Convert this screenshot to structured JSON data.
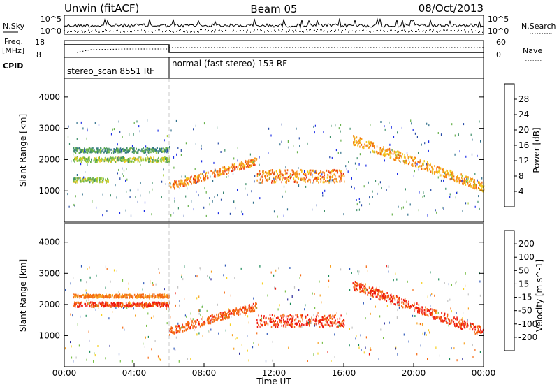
{
  "header": {
    "station": "Unwin (fitACF)",
    "beam": "Beam 05",
    "date": "08/Oct/2013"
  },
  "noise_panel": {
    "left_label": "N.Sky",
    "right_label": "N.Search",
    "left_ticks": [
      "10^5",
      "10^0"
    ],
    "right_ticks": [
      "10^5",
      "10^0"
    ]
  },
  "freq_panel": {
    "left_label_1": "Freq.",
    "left_label_2": "[MHz]",
    "left_ticks": [
      "18",
      "8"
    ],
    "right_label": "Nave",
    "right_ticks": [
      "60",
      "0"
    ]
  },
  "cpid_panel": {
    "label": "CPID",
    "modes": [
      {
        "name": "stereo_scan 8551 RF",
        "start_hour": 0,
        "end_hour": 6
      },
      {
        "name": "normal (fast stereo) 153 RF",
        "start_hour": 6,
        "end_hour": 24
      }
    ]
  },
  "x_axis": {
    "label": "Time UT",
    "ticks": [
      "00:00",
      "04:00",
      "08:00",
      "12:00",
      "16:00",
      "20:00",
      "00:00"
    ]
  },
  "colors": {
    "power": [
      "#1a2ce6",
      "#264aa6",
      "#2e6e8a",
      "#3f8f6a",
      "#66b04a",
      "#a8cf3a",
      "#f2c81c",
      "#f79a1a",
      "#f06a12",
      "#e83010",
      "#e81010"
    ],
    "velocity": [
      "#2a2a9a",
      "#2e58b8",
      "#1b8a58",
      "#7ac048",
      "#c4c4c4",
      "#f7d020",
      "#f7a020",
      "#f56a12",
      "#ee1a10"
    ]
  },
  "chart_data": [
    {
      "type": "heatmap",
      "title": "",
      "ylabel": "Slant Range [km]",
      "y_ticks": [
        "1000",
        "2000",
        "3000",
        "4000"
      ],
      "ylim": [
        0,
        4600
      ],
      "xlim_hours": [
        0,
        24
      ],
      "colorbar": {
        "label": "Power [dB]",
        "ticks": [
          "4",
          "8",
          "12",
          "16",
          "20",
          "24",
          "28"
        ],
        "range": [
          0,
          30
        ]
      },
      "features": [
        {
          "t0": 0.5,
          "t1": 6.0,
          "r0": 2250,
          "r1": 2400,
          "value": 10
        },
        {
          "t0": 0.5,
          "t1": 6.0,
          "r0": 1950,
          "r1": 2100,
          "value": 14
        },
        {
          "t0": 0.5,
          "t1": 2.5,
          "r0": 1300,
          "r1": 1450,
          "value": 14
        },
        {
          "t0": 6.0,
          "t1": 11.0,
          "r0": 1050,
          "r1": 2000,
          "value": 22
        },
        {
          "t0": 11.0,
          "t1": 16.0,
          "r0": 1300,
          "r1": 1700,
          "value": 22
        },
        {
          "t0": 16.5,
          "t1": 24.0,
          "r0": 900,
          "r1": 2300,
          "value": 20
        }
      ]
    },
    {
      "type": "heatmap",
      "title": "",
      "ylabel": "Slant Range [km]",
      "y_ticks": [
        "1000",
        "2000",
        "3000",
        "4000"
      ],
      "ylim": [
        0,
        4600
      ],
      "xlim_hours": [
        0,
        24
      ],
      "colorbar": {
        "label": "Velocity [m s^-1]",
        "ticks": [
          "200",
          "100",
          "50",
          "15",
          "-15",
          "-50",
          "-100",
          "-200"
        ],
        "range": [
          -250,
          250
        ]
      },
      "features": [
        {
          "t0": 0.5,
          "t1": 6.0,
          "r0": 1950,
          "r1": 2100,
          "value": -200
        },
        {
          "t0": 0.5,
          "t1": 6.0,
          "r0": 2250,
          "r1": 2350,
          "value": -150
        },
        {
          "t0": 6.0,
          "t1": 11.0,
          "r0": 1050,
          "r1": 2000,
          "value": -180
        },
        {
          "t0": 11.0,
          "t1": 16.0,
          "r0": 1300,
          "r1": 1700,
          "value": -200
        },
        {
          "t0": 16.5,
          "t1": 24.0,
          "r0": 900,
          "r1": 2300,
          "value": -200
        }
      ]
    }
  ]
}
